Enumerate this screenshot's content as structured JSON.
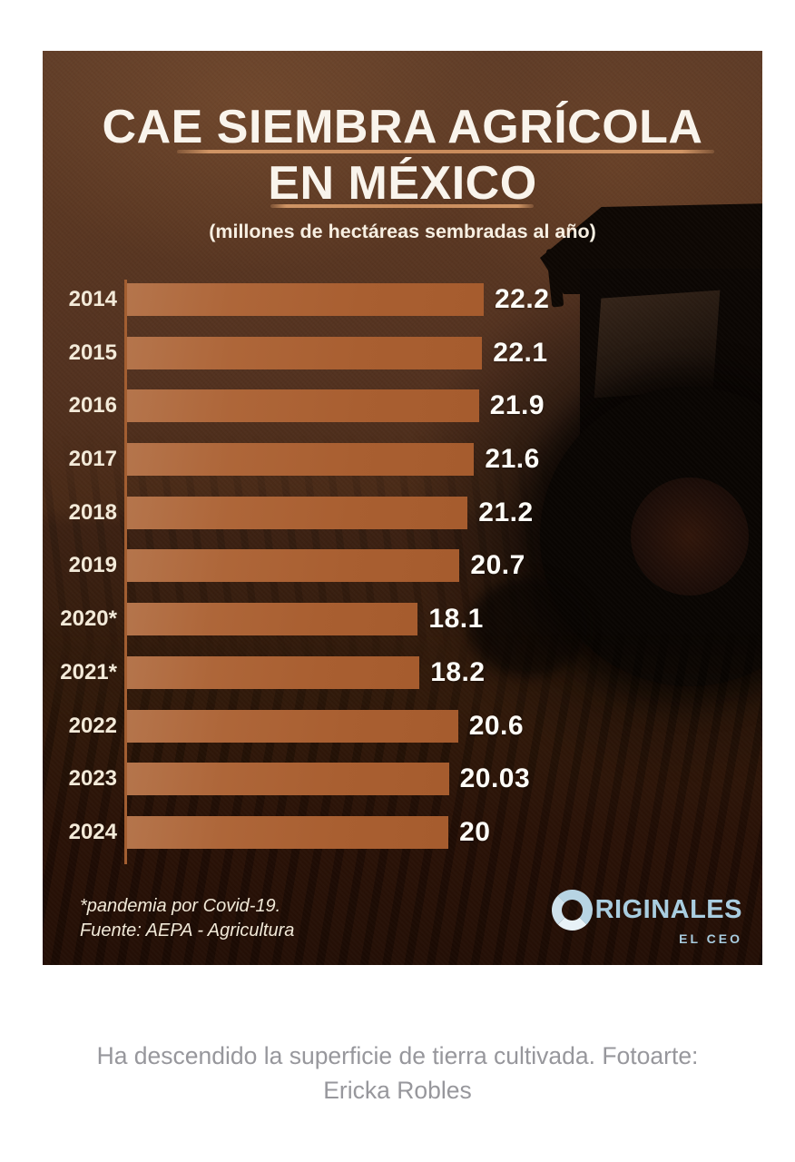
{
  "poster": {
    "title_line1": "CAE SIEMBRA AGRÍCOLA",
    "title_line2": "EN MÉXICO",
    "subtitle": "(millones de hectáreas sembradas al año)",
    "footnote": "*pandemia por Covid-19.",
    "source": "Fuente: AEPA - Agricultura",
    "logo": {
      "initial": "O",
      "rest": "RIGINALES",
      "tagline": "EL CEO"
    }
  },
  "chart_data": {
    "type": "bar",
    "orientation": "horizontal",
    "title": "CAE SIEMBRA AGRÍCOLA EN MÉXICO",
    "subtitle": "(millones de hectáreas sembradas al año)",
    "categories": [
      "2014",
      "2015",
      "2016",
      "2017",
      "2018",
      "2019",
      "2020*",
      "2021*",
      "2022",
      "2023",
      "2024"
    ],
    "values": [
      22.2,
      22.1,
      21.9,
      21.6,
      21.2,
      20.7,
      18.1,
      18.2,
      20.6,
      20.03,
      20
    ],
    "value_labels": [
      "22.2",
      "22.1",
      "21.9",
      "21.6",
      "21.2",
      "20.7",
      "18.1",
      "18.2",
      "20.6",
      "20.03",
      "20"
    ],
    "xlabel": "",
    "ylabel": "",
    "xlim": [
      0,
      22.2
    ],
    "grid": false,
    "legend": false,
    "annotations": [
      "*pandemia por Covid-19.",
      "Fuente: AEPA - Agricultura"
    ],
    "bar_color": "#ab6236",
    "axis_color": "#a35e31",
    "label_color": "#f3ead9",
    "value_color": "#ffffff"
  },
  "caption": {
    "line1": "Ha descendido la superficie de tierra cultivada. Fotoarte:",
    "line2": "Ericka Robles"
  },
  "colors": {
    "poster_bg_top": "#5f3c27",
    "poster_bg_bottom": "#1f0c04",
    "title_text": "#f9f4ec",
    "underline": "#cf9464",
    "logo_blue": "#a9cde0",
    "caption_gray": "#97979c",
    "page_bg": "#ffffff"
  }
}
